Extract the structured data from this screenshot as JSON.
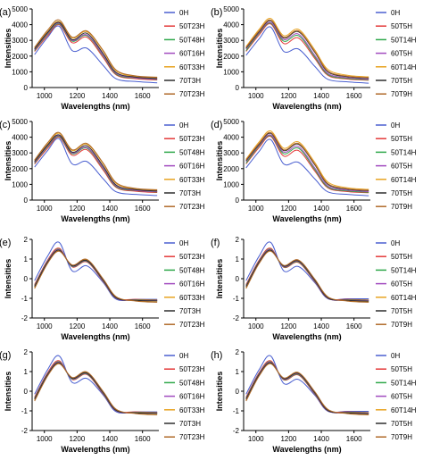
{
  "figure": {
    "x_label": "Wavelengths (nm)",
    "y_label": "Intensities"
  },
  "chart_data": [
    {
      "panel": "(a)",
      "type": "line",
      "xlim": [
        925,
        1700
      ],
      "ylim": [
        0,
        5000
      ],
      "xticks": [
        1000,
        1200,
        1400,
        1600
      ],
      "yticks": [
        0,
        1000,
        2000,
        3000,
        4000,
        5000
      ],
      "series": [
        {
          "name": "0H",
          "color": "#4a5fd0",
          "values": [
            2100,
            3200,
            3900,
            2350,
            2500,
            1400,
            550,
            380,
            300
          ]
        },
        {
          "name": "50T23H",
          "color": "#e43a3a",
          "values": [
            2300,
            3300,
            4000,
            2850,
            3200,
            1900,
            800,
            560,
            480
          ]
        },
        {
          "name": "50T48H",
          "color": "#2fa84a",
          "values": [
            2350,
            3400,
            4050,
            2950,
            3300,
            2000,
            850,
            600,
            520
          ]
        },
        {
          "name": "60T16H",
          "color": "#a24bbf",
          "values": [
            2400,
            3450,
            4100,
            3000,
            3350,
            2050,
            900,
            620,
            540
          ]
        },
        {
          "name": "60T33H",
          "color": "#e8a321",
          "values": [
            2500,
            3550,
            4200,
            3150,
            3550,
            2300,
            1050,
            700,
            620
          ]
        },
        {
          "name": "70T3H",
          "color": "#2e2e2e",
          "values": [
            2450,
            3500,
            4150,
            3050,
            3450,
            2150,
            950,
            660,
            580
          ]
        },
        {
          "name": "70T23H",
          "color": "#b06a2a",
          "values": [
            2550,
            3650,
            4300,
            3200,
            3600,
            2350,
            1100,
            740,
            660
          ]
        }
      ]
    },
    {
      "panel": "(b)",
      "type": "line",
      "xlim": [
        925,
        1700
      ],
      "ylim": [
        0,
        5000
      ],
      "xticks": [
        1000,
        1200,
        1400,
        1600
      ],
      "yticks": [
        0,
        1000,
        2000,
        3000,
        4000,
        5000
      ],
      "series": [
        {
          "name": "0H",
          "color": "#4a5fd0",
          "values": [
            2050,
            3100,
            3850,
            2300,
            2450,
            1350,
            520,
            360,
            280
          ]
        },
        {
          "name": "50T5H",
          "color": "#e43a3a",
          "values": [
            2300,
            3350,
            4050,
            2800,
            3150,
            1850,
            780,
            540,
            470
          ]
        },
        {
          "name": "50T14H",
          "color": "#2fa84a",
          "values": [
            2350,
            3450,
            4100,
            2950,
            3300,
            1950,
            830,
            580,
            500
          ]
        },
        {
          "name": "60T5H",
          "color": "#a24bbf",
          "values": [
            2450,
            3500,
            4150,
            3050,
            3400,
            2050,
            900,
            630,
            540
          ]
        },
        {
          "name": "60T14H",
          "color": "#e8a321",
          "values": [
            2600,
            3700,
            4400,
            3300,
            3700,
            2400,
            1150,
            780,
            680
          ]
        },
        {
          "name": "70T5H",
          "color": "#2e2e2e",
          "values": [
            2500,
            3550,
            4250,
            3150,
            3550,
            2250,
            1000,
            690,
            600
          ]
        },
        {
          "name": "70T9H",
          "color": "#b06a2a",
          "values": [
            2550,
            3600,
            4300,
            3200,
            3600,
            2300,
            1050,
            720,
            630
          ]
        }
      ]
    },
    {
      "panel": "(c)",
      "type": "line",
      "xlim": [
        925,
        1700
      ],
      "ylim": [
        0,
        5000
      ],
      "xticks": [
        1000,
        1200,
        1400,
        1600
      ],
      "yticks": [
        0,
        1000,
        2000,
        3000,
        4000,
        5000
      ],
      "series": [
        {
          "name": "0H",
          "color": "#4a5fd0",
          "values": [
            2100,
            3150,
            3900,
            2300,
            2450,
            1350,
            520,
            360,
            290
          ]
        },
        {
          "name": "50T23H",
          "color": "#e43a3a",
          "values": [
            2300,
            3300,
            4000,
            2850,
            3200,
            1900,
            800,
            560,
            480
          ]
        },
        {
          "name": "50T48H",
          "color": "#2fa84a",
          "values": [
            2350,
            3400,
            4050,
            2950,
            3300,
            2000,
            850,
            600,
            520
          ]
        },
        {
          "name": "60T16H",
          "color": "#a24bbf",
          "values": [
            2400,
            3450,
            4100,
            3000,
            3350,
            2050,
            900,
            620,
            540
          ]
        },
        {
          "name": "60T33H",
          "color": "#e8a321",
          "values": [
            2500,
            3550,
            4250,
            3150,
            3550,
            2300,
            1050,
            700,
            620
          ]
        },
        {
          "name": "70T3H",
          "color": "#2e2e2e",
          "values": [
            2450,
            3500,
            4150,
            3050,
            3450,
            2150,
            950,
            660,
            580
          ]
        },
        {
          "name": "70T23H",
          "color": "#b06a2a",
          "values": [
            2550,
            3650,
            4300,
            3200,
            3600,
            2350,
            1100,
            740,
            660
          ]
        }
      ]
    },
    {
      "panel": "(d)",
      "type": "line",
      "xlim": [
        925,
        1700
      ],
      "ylim": [
        0,
        5000
      ],
      "xticks": [
        1000,
        1200,
        1400,
        1600
      ],
      "yticks": [
        0,
        1000,
        2000,
        3000,
        4000,
        5000
      ],
      "series": [
        {
          "name": "0H",
          "color": "#4a5fd0",
          "values": [
            2050,
            3100,
            3850,
            2300,
            2400,
            1350,
            520,
            360,
            280
          ]
        },
        {
          "name": "50T5H",
          "color": "#e43a3a",
          "values": [
            2300,
            3350,
            4050,
            2800,
            3150,
            1850,
            780,
            540,
            470
          ]
        },
        {
          "name": "50T14H",
          "color": "#2fa84a",
          "values": [
            2350,
            3450,
            4100,
            2950,
            3300,
            1950,
            830,
            580,
            500
          ]
        },
        {
          "name": "60T5H",
          "color": "#a24bbf",
          "values": [
            2450,
            3500,
            4150,
            3050,
            3400,
            2050,
            900,
            630,
            540
          ]
        },
        {
          "name": "60T14H",
          "color": "#e8a321",
          "values": [
            2600,
            3700,
            4400,
            3300,
            3700,
            2400,
            1150,
            780,
            680
          ]
        },
        {
          "name": "70T5H",
          "color": "#2e2e2e",
          "values": [
            2500,
            3550,
            4250,
            3150,
            3550,
            2250,
            1000,
            690,
            600
          ]
        },
        {
          "name": "70T9H",
          "color": "#b06a2a",
          "values": [
            2550,
            3600,
            4300,
            3200,
            3600,
            2300,
            1050,
            720,
            630
          ]
        }
      ]
    },
    {
      "panel": "(e)",
      "type": "line",
      "xlim": [
        925,
        1700
      ],
      "ylim": [
        -2,
        2
      ],
      "xticks": [
        1000,
        1200,
        1400,
        1600
      ],
      "yticks": [
        -2,
        -1,
        0,
        1,
        2
      ],
      "series": [
        {
          "name": "0H",
          "color": "#4a5fd0",
          "values": [
            -0.1,
            1.15,
            1.85,
            0.4,
            0.65,
            -0.2,
            -1.05,
            -1.05,
            -1.05
          ]
        },
        {
          "name": "50T23H",
          "color": "#e43a3a",
          "values": [
            -0.3,
            0.95,
            1.55,
            0.6,
            0.85,
            -0.15,
            -1.0,
            -1.05,
            -1.08
          ]
        },
        {
          "name": "50T48H",
          "color": "#2fa84a",
          "values": [
            -0.35,
            0.9,
            1.5,
            0.62,
            0.88,
            -0.12,
            -1.0,
            -1.08,
            -1.1
          ]
        },
        {
          "name": "60T16H",
          "color": "#a24bbf",
          "values": [
            -0.38,
            0.88,
            1.48,
            0.64,
            0.9,
            -0.1,
            -1.0,
            -1.1,
            -1.12
          ]
        },
        {
          "name": "60T33H",
          "color": "#e8a321",
          "values": [
            -0.45,
            0.8,
            1.42,
            0.68,
            0.95,
            -0.05,
            -0.95,
            -1.12,
            -1.15
          ]
        },
        {
          "name": "70T3H",
          "color": "#2e2e2e",
          "values": [
            -0.4,
            0.85,
            1.45,
            0.66,
            0.92,
            -0.08,
            -0.98,
            -1.1,
            -1.13
          ]
        },
        {
          "name": "70T23H",
          "color": "#b06a2a",
          "values": [
            -0.5,
            0.78,
            1.4,
            0.7,
            0.98,
            -0.02,
            -0.92,
            -1.14,
            -1.2
          ]
        }
      ]
    },
    {
      "panel": "(f)",
      "type": "line",
      "xlim": [
        925,
        1700
      ],
      "ylim": [
        -2,
        2
      ],
      "xticks": [
        1000,
        1200,
        1400,
        1600
      ],
      "yticks": [
        -2,
        -1,
        0,
        1,
        2
      ],
      "series": [
        {
          "name": "0H",
          "color": "#4a5fd0",
          "values": [
            -0.1,
            1.15,
            1.85,
            0.4,
            0.62,
            -0.2,
            -1.02,
            -1.02,
            -1.02
          ]
        },
        {
          "name": "50T5H",
          "color": "#e43a3a",
          "values": [
            -0.3,
            0.95,
            1.55,
            0.58,
            0.82,
            -0.15,
            -1.0,
            -1.05,
            -1.08
          ]
        },
        {
          "name": "50T14H",
          "color": "#2fa84a",
          "values": [
            -0.35,
            0.9,
            1.5,
            0.6,
            0.85,
            -0.12,
            -1.0,
            -1.08,
            -1.1
          ]
        },
        {
          "name": "60T5H",
          "color": "#a24bbf",
          "values": [
            -0.38,
            0.88,
            1.48,
            0.62,
            0.88,
            -0.1,
            -1.0,
            -1.1,
            -1.12
          ]
        },
        {
          "name": "60T14H",
          "color": "#e8a321",
          "values": [
            -0.45,
            0.8,
            1.42,
            0.66,
            0.92,
            -0.05,
            -0.95,
            -1.12,
            -1.18
          ]
        },
        {
          "name": "70T5H",
          "color": "#2e2e2e",
          "values": [
            -0.4,
            0.85,
            1.45,
            0.64,
            0.9,
            -0.08,
            -0.98,
            -1.1,
            -1.14
          ]
        },
        {
          "name": "70T9H",
          "color": "#b06a2a",
          "values": [
            -0.5,
            0.78,
            1.4,
            0.68,
            0.95,
            -0.02,
            -0.92,
            -1.14,
            -1.2
          ]
        }
      ]
    },
    {
      "panel": "(g)",
      "type": "line",
      "xlim": [
        925,
        1700
      ],
      "ylim": [
        -2,
        2
      ],
      "xticks": [
        1000,
        1200,
        1400,
        1600
      ],
      "yticks": [
        -2,
        -1,
        0,
        1,
        2
      ],
      "series": [
        {
          "name": "0H",
          "color": "#4a5fd0",
          "values": [
            -0.15,
            1.1,
            1.8,
            0.45,
            0.65,
            -0.2,
            -1.05,
            -1.05,
            -1.05
          ]
        },
        {
          "name": "50T23H",
          "color": "#e43a3a",
          "values": [
            -0.3,
            0.95,
            1.55,
            0.6,
            0.85,
            -0.15,
            -1.0,
            -1.05,
            -1.08
          ]
        },
        {
          "name": "50T48H",
          "color": "#2fa84a",
          "values": [
            -0.35,
            0.9,
            1.5,
            0.62,
            0.88,
            -0.12,
            -1.0,
            -1.08,
            -1.1
          ]
        },
        {
          "name": "60T16H",
          "color": "#a24bbf",
          "values": [
            -0.38,
            0.88,
            1.48,
            0.64,
            0.9,
            -0.1,
            -1.0,
            -1.1,
            -1.12
          ]
        },
        {
          "name": "60T33H",
          "color": "#e8a321",
          "values": [
            -0.45,
            0.8,
            1.42,
            0.68,
            0.95,
            -0.05,
            -0.95,
            -1.12,
            -1.15
          ]
        },
        {
          "name": "70T3H",
          "color": "#2e2e2e",
          "values": [
            -0.4,
            0.85,
            1.45,
            0.66,
            0.92,
            -0.08,
            -0.98,
            -1.1,
            -1.13
          ]
        },
        {
          "name": "70T23H",
          "color": "#b06a2a",
          "values": [
            -0.5,
            0.78,
            1.4,
            0.7,
            0.98,
            -0.02,
            -0.92,
            -1.14,
            -1.2
          ]
        }
      ]
    },
    {
      "panel": "(h)",
      "type": "line",
      "xlim": [
        925,
        1700
      ],
      "ylim": [
        -2,
        2
      ],
      "xticks": [
        1000,
        1200,
        1400,
        1600
      ],
      "yticks": [
        -2,
        -1,
        0,
        1,
        2
      ],
      "series": [
        {
          "name": "0H",
          "color": "#4a5fd0",
          "values": [
            -0.15,
            1.1,
            1.8,
            0.4,
            0.6,
            -0.2,
            -1.02,
            -1.02,
            -1.02
          ]
        },
        {
          "name": "50T5H",
          "color": "#e43a3a",
          "values": [
            -0.3,
            0.95,
            1.55,
            0.58,
            0.82,
            -0.15,
            -1.0,
            -1.05,
            -1.08
          ]
        },
        {
          "name": "50T14H",
          "color": "#2fa84a",
          "values": [
            -0.35,
            0.9,
            1.5,
            0.6,
            0.85,
            -0.12,
            -1.0,
            -1.08,
            -1.1
          ]
        },
        {
          "name": "60T5H",
          "color": "#a24bbf",
          "values": [
            -0.38,
            0.88,
            1.48,
            0.62,
            0.88,
            -0.1,
            -1.0,
            -1.1,
            -1.12
          ]
        },
        {
          "name": "60T14H",
          "color": "#e8a321",
          "values": [
            -0.45,
            0.8,
            1.42,
            0.66,
            0.92,
            -0.05,
            -0.95,
            -1.12,
            -1.18
          ]
        },
        {
          "name": "70T5H",
          "color": "#2e2e2e",
          "values": [
            -0.4,
            0.85,
            1.45,
            0.64,
            0.9,
            -0.08,
            -0.98,
            -1.1,
            -1.14
          ]
        },
        {
          "name": "70T9H",
          "color": "#b06a2a",
          "values": [
            -0.5,
            0.78,
            1.4,
            0.68,
            0.95,
            -0.02,
            -0.92,
            -1.14,
            -1.2
          ]
        }
      ]
    }
  ],
  "shared_x": [
    940,
    1020,
    1090,
    1170,
    1260,
    1360,
    1440,
    1560,
    1690
  ]
}
